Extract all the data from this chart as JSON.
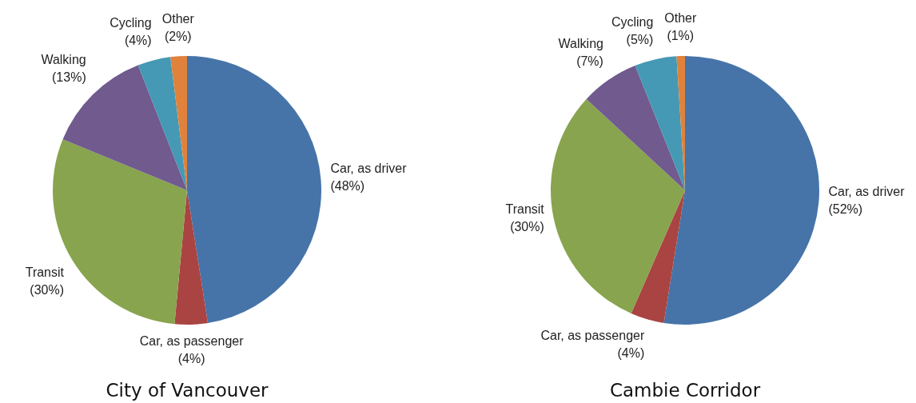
{
  "chart_data": [
    {
      "type": "pie",
      "title": "City of Vancouver",
      "categories": [
        "Car, as driver",
        "Car, as passenger",
        "Transit",
        "Walking",
        "Cycling",
        "Other"
      ],
      "values": [
        48,
        4,
        30,
        13,
        4,
        2
      ],
      "value_labels": [
        "(48%)",
        "(4%)",
        "(30%)",
        "(13%)",
        "(4%)",
        "(2%)"
      ],
      "colors": [
        "#4674a8",
        "#a94442",
        "#88a44e",
        "#705a8e",
        "#4599b4",
        "#e0823c"
      ],
      "legend": false
    },
    {
      "type": "pie",
      "title": "Cambie Corridor",
      "categories": [
        "Car, as driver",
        "Car, as passenger",
        "Transit",
        "Walking",
        "Cycling",
        "Other"
      ],
      "values": [
        52,
        4,
        30,
        7,
        5,
        1
      ],
      "value_labels": [
        "(52%)",
        "(4%)",
        "(30%)",
        "(7%)",
        "(5%)",
        "(1%)"
      ],
      "colors": [
        "#4674a8",
        "#a94442",
        "#88a44e",
        "#705a8e",
        "#4599b4",
        "#e0823c"
      ],
      "legend": false
    }
  ]
}
